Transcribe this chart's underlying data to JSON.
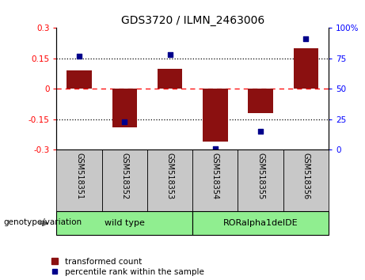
{
  "title": "GDS3720 / ILMN_2463006",
  "samples": [
    "GSM518351",
    "GSM518352",
    "GSM518353",
    "GSM518354",
    "GSM518355",
    "GSM518356"
  ],
  "bar_values": [
    0.09,
    -0.19,
    0.1,
    -0.26,
    -0.12,
    0.2
  ],
  "percentile_values": [
    77,
    23,
    78,
    1,
    15,
    91
  ],
  "group_labels": [
    "wild type",
    "RORalpha1delDE"
  ],
  "group_colors": [
    "#90EE90",
    "#90EE90"
  ],
  "bar_color": "#8B1010",
  "scatter_color": "#00008B",
  "ylim": [
    -0.3,
    0.3
  ],
  "y2lim": [
    0,
    100
  ],
  "yticks_left": [
    -0.3,
    -0.15,
    0,
    0.15,
    0.3
  ],
  "ytick_labels_left": [
    "-0.3",
    "-0.15",
    "0",
    "0.15",
    "0.3"
  ],
  "yticks_right": [
    0,
    25,
    50,
    75,
    100
  ],
  "ytick_labels_right": [
    "0",
    "25",
    "50",
    "75",
    "100%"
  ],
  "legend_label_bar": "transformed count",
  "legend_label_scatter": "percentile rank within the sample",
  "genotype_label": "genotype/variation",
  "header_bg": "#C8C8C8",
  "genotype_bg": "#90EE90"
}
